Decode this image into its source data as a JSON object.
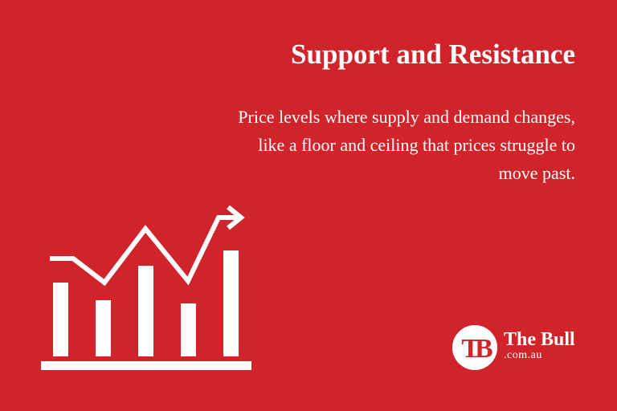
{
  "card": {
    "title": "Support and Resistance",
    "description": "Price levels where supply and demand changes, like a floor and ceiling that prices struggle to move past."
  },
  "icon": {
    "name": "growth-chart-icon"
  },
  "logo": {
    "monogram": "TB",
    "name": "The Bull",
    "domain": ".com.au"
  },
  "colors": {
    "background": "#d1232a",
    "foreground": "#ffffff"
  }
}
